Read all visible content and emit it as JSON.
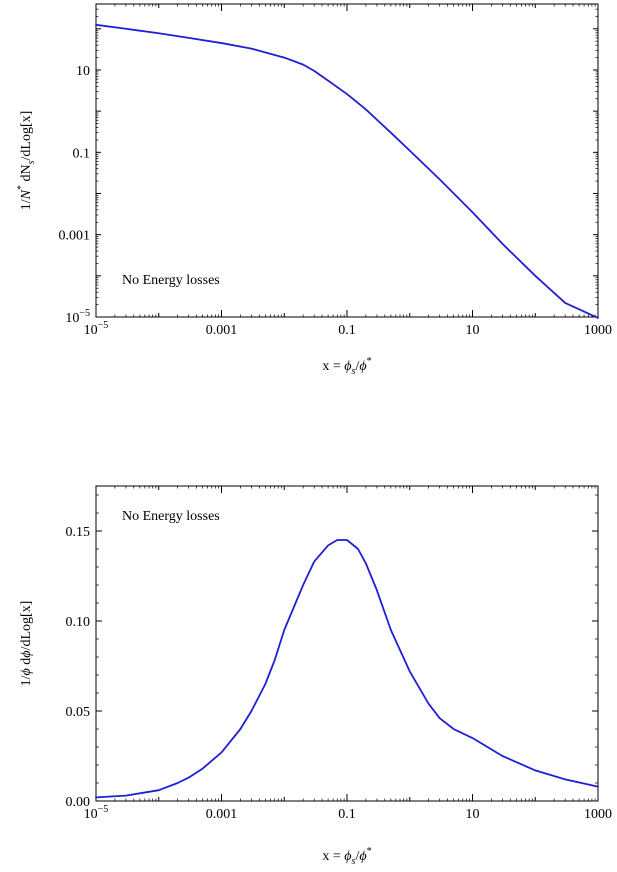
{
  "chart_data": [
    {
      "type": "line",
      "xscale": "log",
      "yscale": "log",
      "xlim": [
        1e-05,
        1000
      ],
      "ylim": [
        1e-05,
        400
      ],
      "x_ticks": [
        {
          "value": 1e-05,
          "base": "10",
          "exp": "−5"
        },
        {
          "value": 0.001,
          "label": "0.001"
        },
        {
          "value": 0.1,
          "label": "0.1"
        },
        {
          "value": 10,
          "label": "10"
        },
        {
          "value": 1000,
          "label": "1000"
        }
      ],
      "y_ticks": [
        {
          "value": 1e-05,
          "base": "10",
          "exp": "−5"
        },
        {
          "value": 0.001,
          "label": "0.001"
        },
        {
          "value": 0.1,
          "label": "0.1"
        },
        {
          "value": 10,
          "label": "10"
        }
      ],
      "xlabel": {
        "pre": "x = ",
        "n1": "ϕ",
        "s1": "s",
        "mid": "/",
        "n2": "ϕ",
        "s2": "*"
      },
      "ylabel": {
        "pre": "1/",
        "n1": "N",
        "s1": "*",
        "mid": "  dN",
        "s2": "s",
        "post": "/dLog[x]"
      },
      "annotation": "No Energy losses",
      "series": [
        {
          "color": "#1f1fd6",
          "x": [
            1e-05,
            3e-05,
            0.0001,
            0.0003,
            0.001,
            0.003,
            0.01,
            0.02,
            0.03,
            0.05,
            0.1,
            0.2,
            0.5,
            1,
            3,
            10,
            30,
            100,
            300,
            1000
          ],
          "y": [
            125,
            100,
            78,
            60,
            45,
            33,
            20,
            13.5,
            9.5,
            5.5,
            2.6,
            1.1,
            0.3,
            0.11,
            0.022,
            0.0035,
            0.0006,
            0.0001,
            2.2e-05,
            9.5e-06
          ]
        }
      ]
    },
    {
      "type": "line",
      "xscale": "log",
      "yscale": "linear",
      "xlim": [
        1e-05,
        1000
      ],
      "ylim": [
        0,
        0.175
      ],
      "x_ticks": [
        {
          "value": 1e-05,
          "base": "10",
          "exp": "−5"
        },
        {
          "value": 0.001,
          "label": "0.001"
        },
        {
          "value": 0.1,
          "label": "0.1"
        },
        {
          "value": 10,
          "label": "10"
        },
        {
          "value": 1000,
          "label": "1000"
        }
      ],
      "y_ticks": [
        {
          "value": 0,
          "label": "0.00"
        },
        {
          "value": 0.05,
          "label": "0.05"
        },
        {
          "value": 0.1,
          "label": "0.10"
        },
        {
          "value": 0.15,
          "label": "0.15"
        }
      ],
      "xlabel": {
        "pre": "x = ",
        "n1": "ϕ",
        "s1": "s",
        "mid": "/",
        "n2": "ϕ",
        "s2": "*"
      },
      "ylabel": {
        "pre": "1/",
        "n1": "ϕ",
        "s1": "",
        "mid": "  d",
        "s2": "",
        "post": "/dLog[x]",
        "mid_italic": "ϕ"
      },
      "annotation": "No Energy losses",
      "series": [
        {
          "color": "#1f1fd6",
          "x": [
            1e-05,
            3e-05,
            0.0001,
            0.0002,
            0.0003,
            0.0005,
            0.001,
            0.002,
            0.003,
            0.005,
            0.007,
            0.01,
            0.02,
            0.03,
            0.05,
            0.07,
            0.1,
            0.15,
            0.2,
            0.3,
            0.5,
            1,
            2,
            3,
            5,
            10,
            30,
            100,
            300,
            1000
          ],
          "y": [
            0.002,
            0.003,
            0.006,
            0.01,
            0.013,
            0.018,
            0.027,
            0.04,
            0.05,
            0.065,
            0.078,
            0.095,
            0.12,
            0.133,
            0.142,
            0.145,
            0.145,
            0.14,
            0.132,
            0.117,
            0.095,
            0.072,
            0.054,
            0.046,
            0.04,
            0.035,
            0.025,
            0.017,
            0.012,
            0.008
          ]
        }
      ]
    }
  ]
}
